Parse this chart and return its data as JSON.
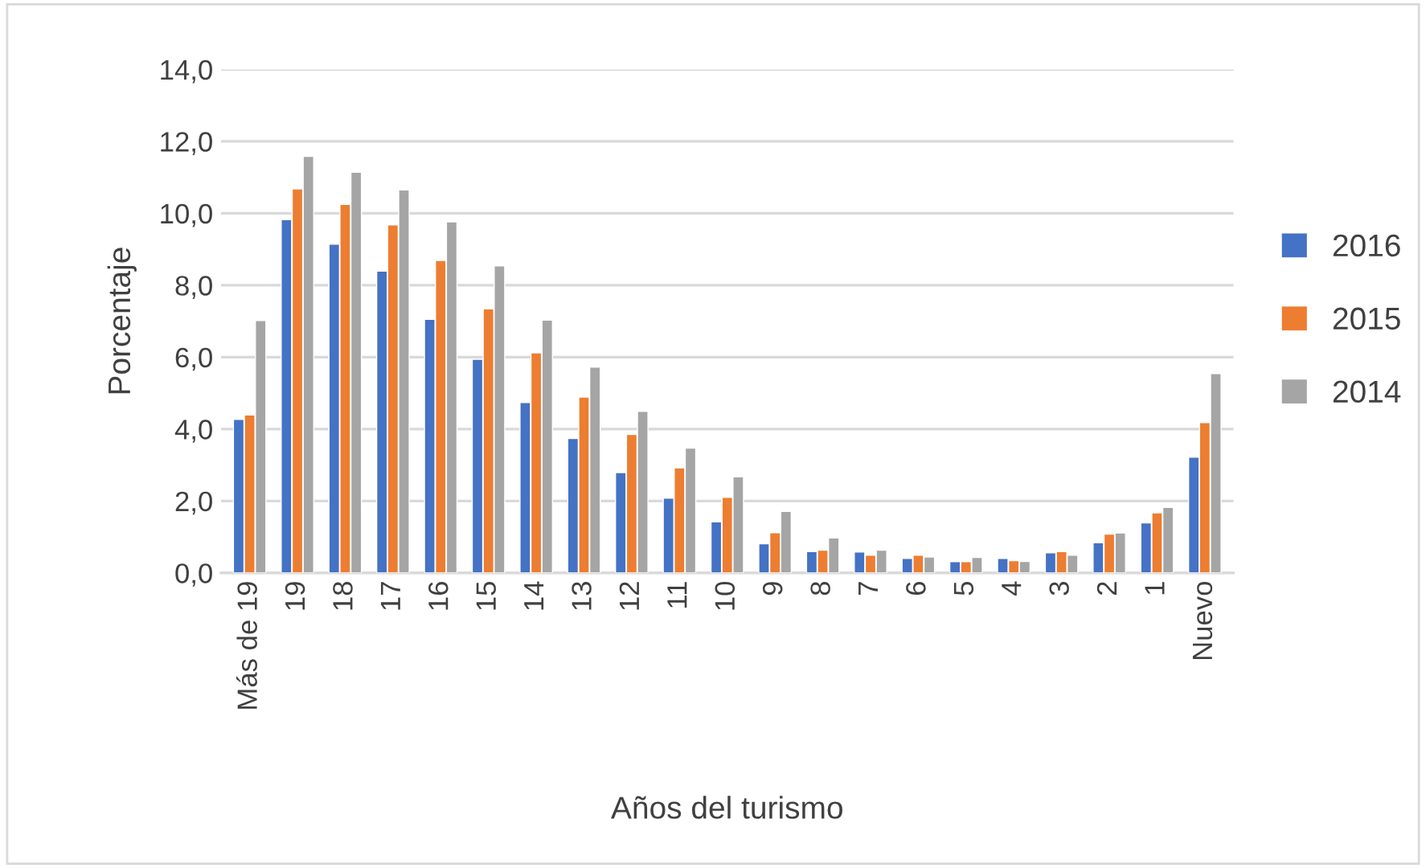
{
  "chart_data": {
    "type": "bar",
    "xlabel": "Años del turismo",
    "ylabel": "Porcentaje",
    "categories": [
      "Más de 19",
      "19",
      "18",
      "17",
      "16",
      "15",
      "14",
      "13",
      "12",
      "11",
      "10",
      "9",
      "8",
      "7",
      "6",
      "5",
      "4",
      "3",
      "2",
      "1",
      "Nuevo"
    ],
    "series": [
      {
        "name": "2016",
        "color": "#4472c4",
        "values": [
          4.27,
          9.82,
          9.14,
          8.39,
          7.05,
          5.94,
          4.74,
          3.74,
          2.79,
          2.08,
          1.42,
          0.81,
          0.59,
          0.58,
          0.4,
          0.31,
          0.4,
          0.56,
          0.84,
          1.39,
          3.22
        ]
      },
      {
        "name": "2015",
        "color": "#ed7d31",
        "values": [
          4.39,
          10.68,
          10.25,
          9.68,
          8.69,
          7.34,
          6.12,
          4.89,
          3.85,
          2.92,
          2.1,
          1.12,
          0.63,
          0.49,
          0.49,
          0.31,
          0.34,
          0.59,
          1.08,
          1.67,
          4.18
        ]
      },
      {
        "name": "2014",
        "color": "#a5a5a5",
        "values": [
          7.02,
          11.58,
          11.14,
          10.65,
          9.76,
          8.54,
          7.03,
          5.72,
          4.49,
          3.47,
          2.67,
          1.71,
          0.97,
          0.63,
          0.44,
          0.43,
          0.32,
          0.49,
          1.11,
          1.82,
          5.54
        ]
      }
    ],
    "ylim": [
      0,
      14
    ],
    "yticks": [
      {
        "value": 0,
        "label": "0,0"
      },
      {
        "value": 2,
        "label": "2,0"
      },
      {
        "value": 4,
        "label": "4,0"
      },
      {
        "value": 6,
        "label": "6,0"
      },
      {
        "value": 8,
        "label": "8,0"
      },
      {
        "value": 10,
        "label": "10,0"
      },
      {
        "value": 12,
        "label": "12,0"
      },
      {
        "value": 14,
        "label": "14,0"
      }
    ],
    "grid": "y",
    "legend": "right"
  }
}
